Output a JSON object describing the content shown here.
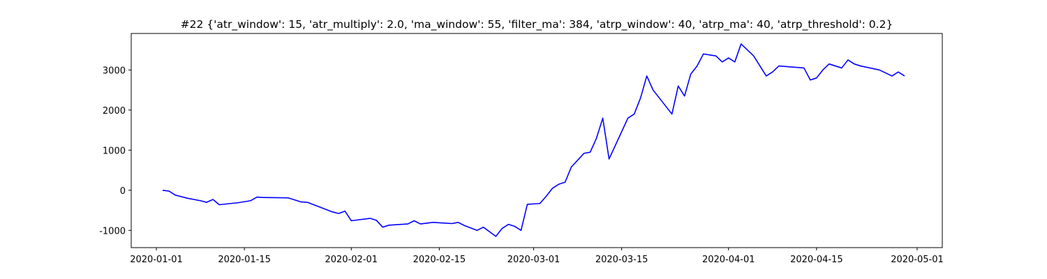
{
  "chart_data": {
    "type": "line",
    "title": "#22 {'atr_window': 15, 'atr_multiply': 2.0, 'ma_window': 55, 'filter_ma': 384, 'atrp_window': 40, 'atrp_ma': 40, 'atrp_threshold': 0.2}",
    "x": [
      "2020-01-02",
      "2020-01-03",
      "2020-01-04",
      "2020-01-06",
      "2020-01-08",
      "2020-01-09",
      "2020-01-10",
      "2020-01-11",
      "2020-01-14",
      "2020-01-16",
      "2020-01-17",
      "2020-01-18",
      "2020-01-22",
      "2020-01-24",
      "2020-01-25",
      "2020-01-27",
      "2020-01-29",
      "2020-01-30",
      "2020-01-31",
      "2020-02-01",
      "2020-02-04",
      "2020-02-05",
      "2020-02-06",
      "2020-02-07",
      "2020-02-10",
      "2020-02-11",
      "2020-02-12",
      "2020-02-14",
      "2020-02-17",
      "2020-02-18",
      "2020-02-19",
      "2020-02-21",
      "2020-02-22",
      "2020-02-24",
      "2020-02-25",
      "2020-02-26",
      "2020-02-27",
      "2020-02-28",
      "2020-02-29",
      "2020-03-02",
      "2020-03-03",
      "2020-03-04",
      "2020-03-05",
      "2020-03-06",
      "2020-03-07",
      "2020-03-09",
      "2020-03-10",
      "2020-03-11",
      "2020-03-12",
      "2020-03-13",
      "2020-03-16",
      "2020-03-17",
      "2020-03-18",
      "2020-03-19",
      "2020-03-20",
      "2020-03-21",
      "2020-03-23",
      "2020-03-24",
      "2020-03-25",
      "2020-03-26",
      "2020-03-27",
      "2020-03-28",
      "2020-03-30",
      "2020-03-31",
      "2020-04-01",
      "2020-04-02",
      "2020-04-03",
      "2020-04-05",
      "2020-04-06",
      "2020-04-07",
      "2020-04-08",
      "2020-04-09",
      "2020-04-13",
      "2020-04-14",
      "2020-04-15",
      "2020-04-16",
      "2020-04-17",
      "2020-04-19",
      "2020-04-20",
      "2020-04-21",
      "2020-04-22",
      "2020-04-25",
      "2020-04-27",
      "2020-04-28",
      "2020-04-29"
    ],
    "series": [
      {
        "color": "#0000ff",
        "values": [
          0,
          -20,
          -120,
          -200,
          -260,
          -300,
          -230,
          -360,
          -310,
          -260,
          -170,
          -180,
          -190,
          -290,
          -300,
          -420,
          -540,
          -580,
          -520,
          -760,
          -700,
          -750,
          -920,
          -870,
          -840,
          -760,
          -840,
          -800,
          -830,
          -800,
          -880,
          -1000,
          -920,
          -1150,
          -950,
          -850,
          -900,
          -1000,
          -350,
          -330,
          -150,
          50,
          150,
          200,
          580,
          920,
          950,
          1300,
          1800,
          780,
          1800,
          1900,
          2300,
          2850,
          2500,
          2300,
          1900,
          2600,
          2350,
          2900,
          3100,
          3400,
          3350,
          3200,
          3300,
          3200,
          3650,
          3350,
          3100,
          2850,
          2950,
          3100,
          3050,
          2750,
          2800,
          3000,
          3150,
          3050,
          3250,
          3150,
          3100,
          3000,
          2850,
          2950,
          2850
        ]
      }
    ],
    "xlim": [
      "2019-12-28",
      "2020-05-05"
    ],
    "xticks": [
      "2020-01-01",
      "2020-01-15",
      "2020-02-01",
      "2020-02-15",
      "2020-03-01",
      "2020-03-15",
      "2020-04-01",
      "2020-04-15",
      "2020-05-01"
    ],
    "ylim": [
      -1430,
      3910
    ],
    "yticks": [
      -1000,
      0,
      1000,
      2000,
      3000
    ]
  }
}
